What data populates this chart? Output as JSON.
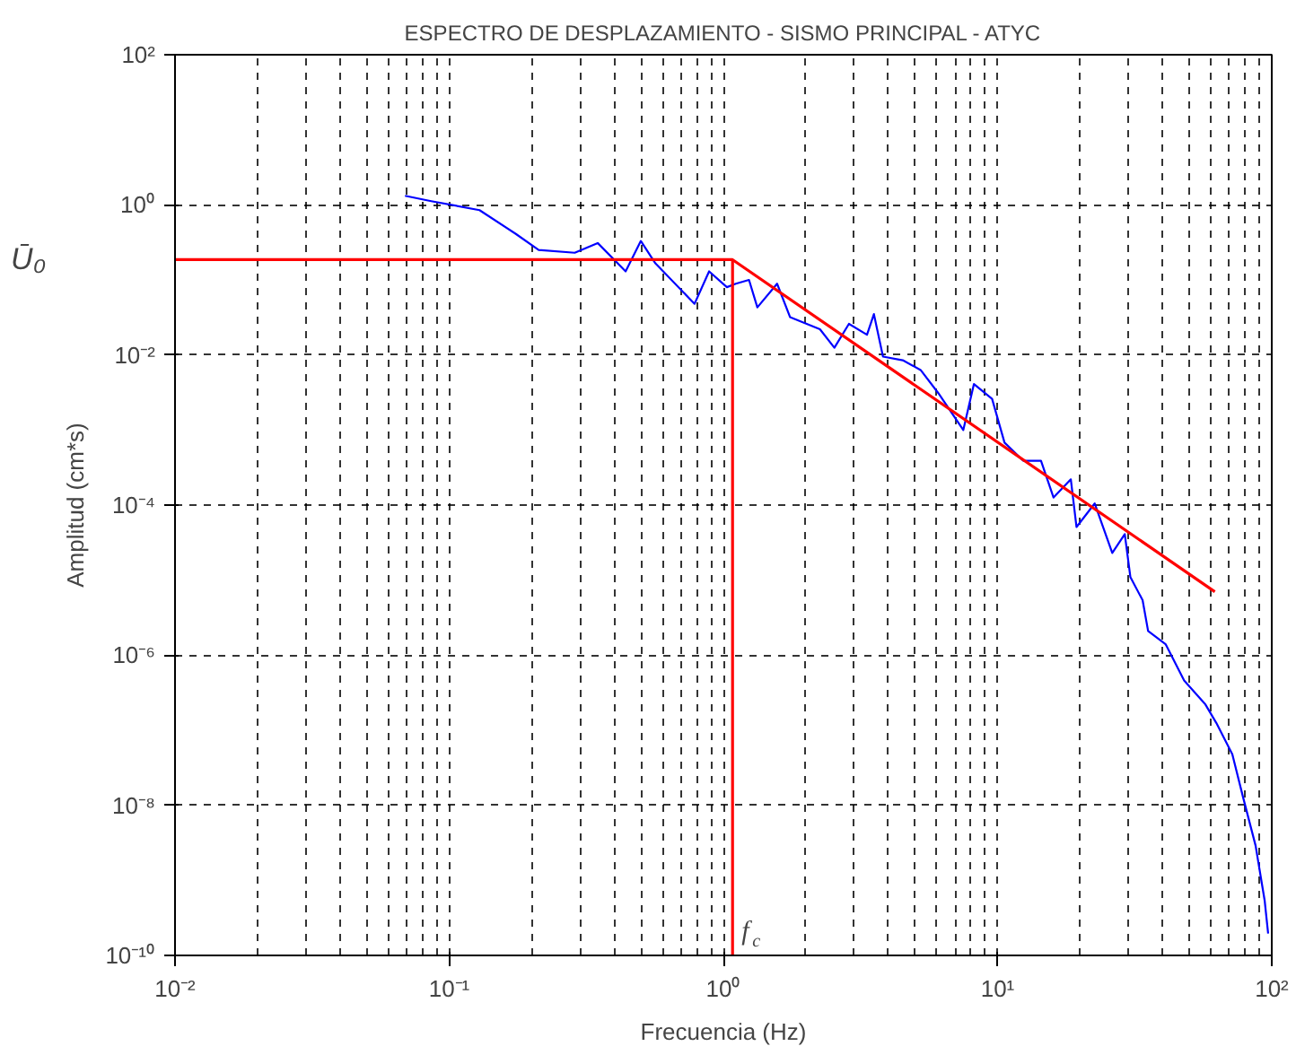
{
  "chart_data": {
    "type": "line",
    "title": "ESPECTRO DE DESPLAZAMIENTO - SISMO PRINCIPAL - ATYC",
    "xlabel": "Frecuencia (Hz)",
    "ylabel": "Amplitud (cm*s)",
    "log": "xy",
    "grid": true,
    "marker": "none",
    "line_style": "solid",
    "xlim": [
      0.01,
      100
    ],
    "ylim": [
      1e-10,
      100
    ],
    "xticks": [
      {
        "value": 0.01,
        "label": "10⁻²"
      },
      {
        "value": 0.1,
        "label": "10⁻¹"
      },
      {
        "value": 1,
        "label": "10⁰"
      },
      {
        "value": 10,
        "label": "10¹"
      },
      {
        "value": 100,
        "label": "10²"
      }
    ],
    "yticks": [
      {
        "value": 1e-10,
        "label": "10⁻¹⁰"
      },
      {
        "value": 1e-08,
        "label": "10⁻⁸"
      },
      {
        "value": 1e-06,
        "label": "10⁻⁶"
      },
      {
        "value": 0.0001,
        "label": "10⁻⁴"
      },
      {
        "value": 0.01,
        "label": "10⁻²"
      },
      {
        "value": 1,
        "label": "10⁰"
      },
      {
        "value": 100,
        "label": "10²"
      }
    ],
    "series": [
      {
        "color": "#0000ff",
        "x": [
          0.069,
          0.086,
          0.129,
          0.175,
          0.212,
          0.287,
          0.348,
          0.44,
          0.5,
          0.565,
          0.785,
          0.887,
          1.03,
          1.11,
          1.24,
          1.33,
          1.57,
          1.75,
          2.25,
          2.54,
          2.87,
          3.34,
          3.54,
          3.82,
          4.51,
          5.24,
          6.08,
          7.5,
          8.2,
          9.55,
          10.6,
          12.4,
          14.4,
          16,
          18.5,
          19.4,
          22.6,
          26.2,
          29.1,
          30.5,
          33.8,
          35.4,
          41,
          47.9,
          57.3,
          62.7,
          71.8,
          78.5,
          87.3,
          94.2,
          97
        ],
        "values": [
          1.32,
          1.12,
          0.85,
          0.41,
          0.25,
          0.23,
          0.31,
          0.13,
          0.33,
          0.166,
          0.048,
          0.13,
          0.08,
          0.089,
          0.1,
          0.043,
          0.089,
          0.032,
          0.022,
          0.0125,
          0.026,
          0.0186,
          0.035,
          0.0095,
          0.0085,
          0.0063,
          0.0031,
          0.001,
          0.0041,
          0.0026,
          0.00068,
          0.00039,
          0.00039,
          0.000126,
          0.00022,
          5.1e-05,
          0.000105,
          2.3e-05,
          4.1e-05,
          1.1e-05,
          5.4e-06,
          2.1e-06,
          1.4e-06,
          4.6e-07,
          2.2e-07,
          1.26e-07,
          4.8e-08,
          1.3e-08,
          2.9e-09,
          5.4e-10,
          1.95e-10
        ]
      },
      {
        "color": "#ff0000",
        "x": [
          0.01,
          1.08,
          62
        ],
        "values": [
          0.186,
          0.186,
          7e-06
        ]
      },
      {
        "color": "#ff0000",
        "x": [
          1.08,
          1.08
        ],
        "values": [
          0.186,
          1e-10
        ]
      }
    ],
    "annotations": [
      "Ū₀",
      {
        "text": "f$_{c}$",
        "x": 1.08
      }
    ]
  }
}
